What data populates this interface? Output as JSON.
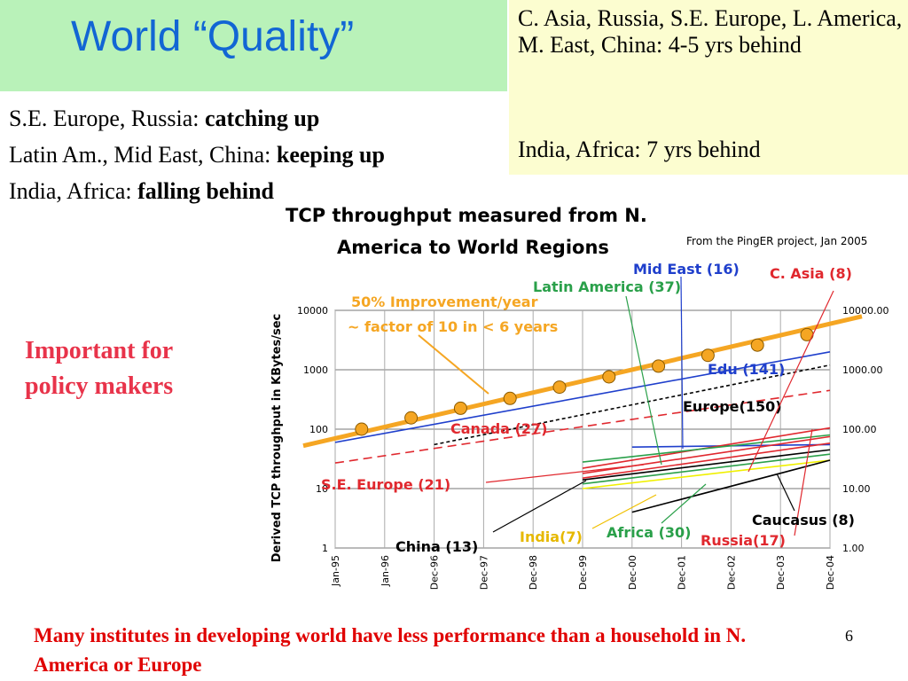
{
  "slide": {
    "title": "World “Quality”",
    "yellow_box": {
      "line1": "C. Asia, Russia, S.E. Europe, L. America, M. East, China:  4-5 yrs behind",
      "line2": "India, Africa: 7 yrs behind"
    },
    "summary": [
      {
        "label": "S.E. Europe, Russia: ",
        "status": "catching up"
      },
      {
        "label": "Latin Am., Mid East, China: ",
        "status": "keeping up"
      },
      {
        "label": "India, Africa: ",
        "status": "falling behind"
      }
    ],
    "important_note": "Important for policy makers",
    "bottom_note": "Many institutes in developing world have less performance than a household in N. America or Europe",
    "slide_number": "6"
  },
  "chart_data": {
    "type": "line",
    "title_line1": "TCP throughput measured from N.",
    "title_line2": "America to World Regions",
    "source": "From the PingER project, Jan 2005",
    "ylabel": "Derived TCP throughput in KBytes/sec",
    "y_scale": "log",
    "ylim": [
      1,
      10000
    ],
    "left_ticks": [
      "10000",
      "1000",
      "100",
      "10",
      "1"
    ],
    "right_ticks": [
      "10000.00",
      "1000.00",
      "100.00",
      "10.00",
      "1.00"
    ],
    "x_ticks": [
      "Jan-95",
      "Jan-96",
      "Dec-96",
      "Dec-97",
      "Dec-98",
      "Dec-99",
      "Dec-00",
      "Dec-01",
      "Dec-02",
      "Dec-03",
      "Dec-04"
    ],
    "improvement_text_line1": "50% Improvement/year",
    "improvement_text_line2": "~ factor of 10 in < 6 years",
    "improvement_line": {
      "color": "#f5a623",
      "x": [
        "Jan-95",
        "Dec-04"
      ],
      "y": [
        85,
        6000
      ],
      "markers": {
        "x": [
          "Jan-96",
          "Dec-96",
          "Dec-97",
          "Dec-98",
          "Dec-99",
          "Dec-00",
          "Dec-01",
          "Dec-02",
          "Dec-03",
          "Dec-04"
        ],
        "y": [
          100,
          155,
          225,
          330,
          510,
          760,
          1150,
          1750,
          2600,
          3900
        ]
      }
    },
    "series": [
      {
        "name": "Edu (141)",
        "color": "#1f3fcc",
        "x": [
          "Jan-95",
          "Dec-04"
        ],
        "y": [
          60,
          2000
        ]
      },
      {
        "name": "Europe(150)",
        "color": "#000000",
        "x": [
          "Dec-96",
          "Dec-04"
        ],
        "y": [
          55,
          1200
        ]
      },
      {
        "name": "Canada (27)",
        "color": "#e0282e",
        "x": [
          "Jan-95",
          "Dec-04"
        ],
        "y": [
          27,
          450
        ]
      },
      {
        "name": "Mid East (16)",
        "color": "#1f3fcc",
        "x": [
          "Dec-00",
          "Dec-04"
        ],
        "y": [
          50,
          55
        ]
      },
      {
        "name": "C. Asia (8)",
        "color": "#e0282e",
        "x": [
          "Dec-99",
          "Dec-04"
        ],
        "y": [
          22,
          105
        ]
      },
      {
        "name": "Latin America (37)",
        "color": "#2aa04a",
        "x": [
          "Dec-99",
          "Dec-04"
        ],
        "y": [
          28,
          80
        ]
      },
      {
        "name": "S.E. Europe (21)",
        "color": "#e0282e",
        "x": [
          "Dec-99",
          "Dec-04"
        ],
        "y": [
          18,
          75
        ]
      },
      {
        "name": "Russia(17)",
        "color": "#e0282e",
        "x": [
          "Dec-99",
          "Dec-04"
        ],
        "y": [
          15,
          58
        ]
      },
      {
        "name": "China (13)",
        "color": "#000000",
        "x": [
          "Dec-99",
          "Dec-04"
        ],
        "y": [
          14,
          45
        ]
      },
      {
        "name": "India(7)",
        "color": "#f0f000",
        "x": [
          "Dec-99",
          "Dec-04"
        ],
        "y": [
          10,
          30
        ]
      },
      {
        "name": "Africa (30)",
        "color": "#2aa04a",
        "x": [
          "Dec-99",
          "Dec-04"
        ],
        "y": [
          12,
          38
        ]
      },
      {
        "name": "Caucasus (8)",
        "color": "#000000",
        "x": [
          "Dec-00",
          "Dec-04"
        ],
        "y": [
          4,
          30
        ]
      }
    ],
    "grid": true
  }
}
